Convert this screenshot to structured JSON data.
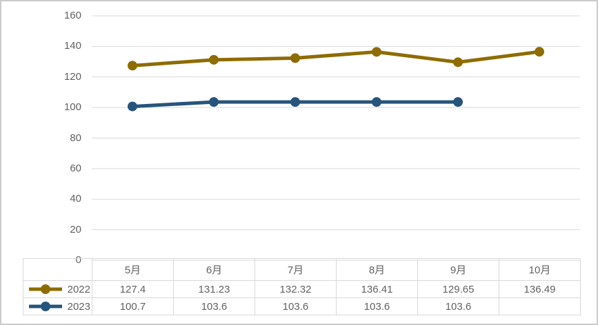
{
  "frame": {
    "background": "#ffffff",
    "border_color": "#cbcbcb"
  },
  "chart_data": {
    "type": "line",
    "categories": [
      "5月",
      "6月",
      "7月",
      "8月",
      "9月",
      "10月"
    ],
    "series": [
      {
        "name": "2022",
        "color": "#8e6c00",
        "values": [
          127.4,
          131.23,
          132.32,
          136.41,
          129.65,
          136.49
        ]
      },
      {
        "name": "2023",
        "color": "#26547c",
        "values": [
          100.7,
          103.6,
          103.6,
          103.6,
          103.6,
          null
        ]
      }
    ],
    "title": "",
    "xlabel": "",
    "ylabel": "",
    "ylim": [
      0,
      160
    ],
    "yticks": [
      0,
      20,
      40,
      60,
      80,
      100,
      120,
      140,
      160
    ],
    "grid": true,
    "gridline_color": "#d9d9d9",
    "axis_text_color": "#616161",
    "table_border_color": "#d9d9d9",
    "legend_position": "data-table-left",
    "data_table": true
  }
}
